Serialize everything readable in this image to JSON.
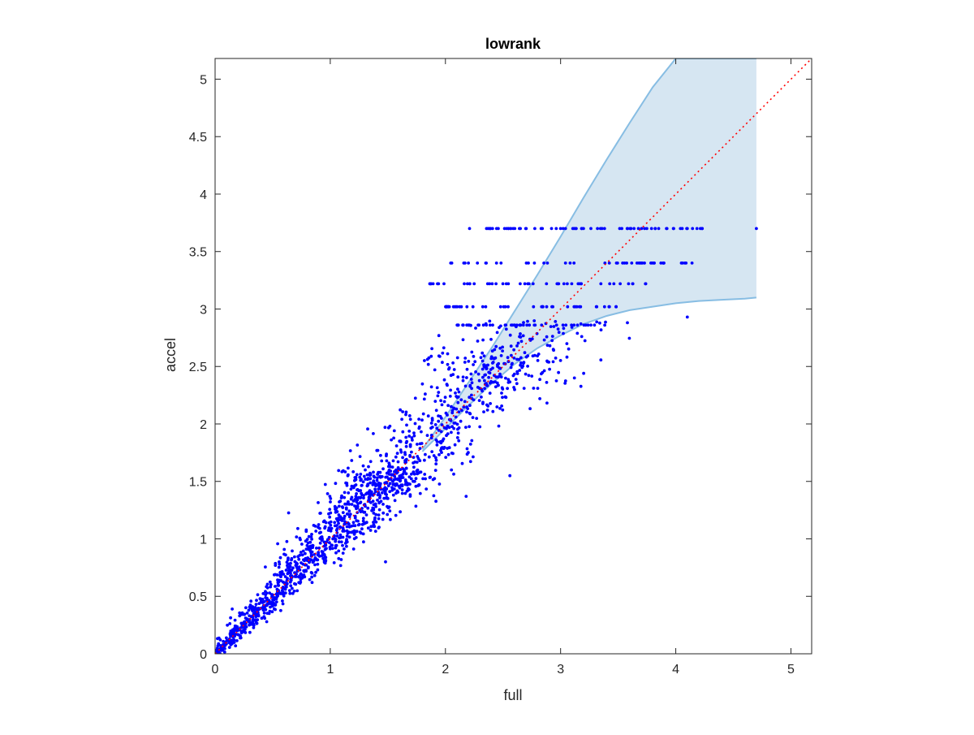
{
  "chart_data": {
    "type": "scatter",
    "title": "lowrank",
    "xlabel": "full",
    "ylabel": "accel",
    "xlim": [
      0,
      5.18
    ],
    "ylim": [
      0,
      5.18
    ],
    "xticks": [
      0,
      1,
      2,
      3,
      4,
      5
    ],
    "yticks": [
      0,
      0.5,
      1,
      1.5,
      2,
      2.5,
      3,
      3.5,
      4,
      4.5,
      5
    ],
    "x_tick_labels": [
      "0",
      "1",
      "2",
      "3",
      "4",
      "5"
    ],
    "y_tick_labels": [
      "0",
      "0.5",
      "1",
      "1.5",
      "2",
      "2.5",
      "3",
      "3.5",
      "4",
      "4.5",
      "5"
    ],
    "grid": false,
    "legend": "none",
    "colors": {
      "points": "#0000ff",
      "band_fill": "#d6e6f2",
      "band_edge": "#87bde3",
      "diagonal": "#ff0000",
      "axes": "#262626"
    },
    "reference_line": {
      "style": "dotted",
      "x": [
        0,
        5.18
      ],
      "y": [
        0,
        5.18
      ]
    },
    "band": {
      "x": [
        1.8,
        2.0,
        2.2,
        2.4,
        2.6,
        2.8,
        3.0,
        3.2,
        3.4,
        3.6,
        3.8,
        4.0,
        4.2,
        4.4,
        4.6,
        4.7
      ],
      "upper": [
        1.78,
        2.06,
        2.36,
        2.66,
        2.98,
        3.3,
        3.63,
        3.97,
        4.3,
        4.62,
        4.93,
        5.18,
        5.18,
        5.18,
        5.18,
        5.18
      ],
      "lower": [
        1.76,
        1.96,
        2.16,
        2.35,
        2.52,
        2.66,
        2.77,
        2.87,
        2.94,
        2.99,
        3.02,
        3.05,
        3.07,
        3.08,
        3.09,
        3.1
      ]
    },
    "points": {
      "n": 1500,
      "note_levels_y": [
        2.86,
        3.02,
        3.22,
        3.4,
        3.7
      ],
      "x": [],
      "y": []
    }
  }
}
